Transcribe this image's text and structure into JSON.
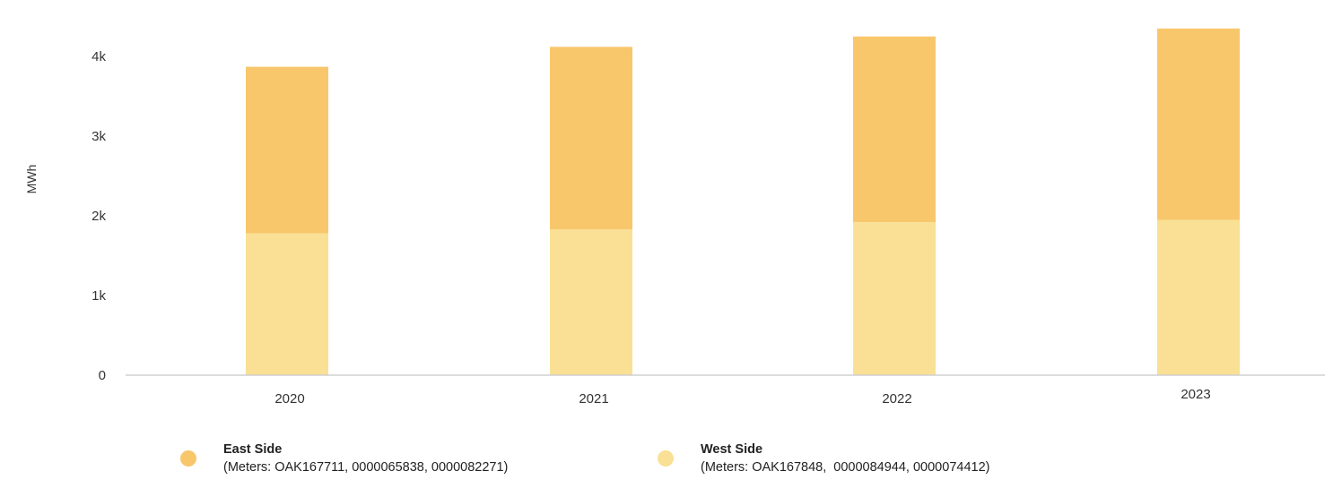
{
  "chart_data": {
    "type": "bar",
    "stacked": true,
    "categories": [
      "2020",
      "2021",
      "2022",
      "2023"
    ],
    "series": [
      {
        "name": "West Side",
        "values": [
          1780,
          1830,
          1920,
          1950
        ],
        "color": "#f9e094"
      },
      {
        "name": "East Side",
        "values": [
          2090,
          2290,
          2330,
          2400
        ],
        "color": "#f8c76c"
      }
    ],
    "ylabel": "MWh",
    "xlabel": "",
    "ylim": [
      0,
      4000
    ],
    "yticks": [
      {
        "value": 0,
        "label": "0"
      },
      {
        "value": 1000,
        "label": "1k"
      },
      {
        "value": 2000,
        "label": "2k"
      },
      {
        "value": 3000,
        "label": "3k"
      },
      {
        "value": 4000,
        "label": "4k"
      }
    ],
    "grid": false,
    "legend_position": "bottom"
  },
  "legend": [
    {
      "name": "East Side",
      "meters": "(Meters: OAK167711, 0000065838, 0000082271)",
      "color": "#f8c76c"
    },
    {
      "name": "West Side",
      "meters": "(Meters: OAK167848,  0000084944, 0000074412)",
      "color": "#f9e094"
    }
  ]
}
